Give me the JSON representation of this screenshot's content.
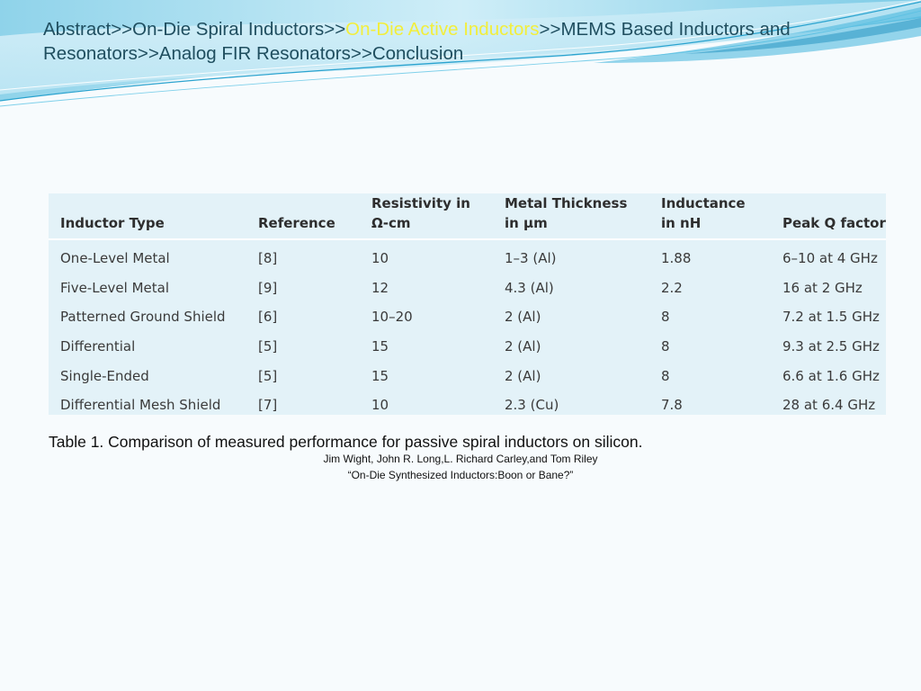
{
  "breadcrumb": {
    "items": [
      {
        "label": "Abstract",
        "active": false
      },
      {
        "label": "On-Die Spiral Inductors",
        "active": false
      },
      {
        "label": "On-Die Active Inductors",
        "active": true
      },
      {
        "label": "MEMS Based Inductors and Resonators",
        "active": false
      },
      {
        "label": "Analog FIR Resonators",
        "active": false
      },
      {
        "label": "Conclusion",
        "active": false
      }
    ],
    "separator": ">>"
  },
  "table": {
    "headers": [
      {
        "line1": "",
        "line2": "Inductor Type"
      },
      {
        "line1": "",
        "line2": "Reference"
      },
      {
        "line1": "Resistivity in",
        "line2": "Ω-cm"
      },
      {
        "line1": "Metal Thickness",
        "line2": "in µm"
      },
      {
        "line1": "Inductance",
        "line2": "in nH"
      },
      {
        "line1": "",
        "line2": "Peak Q factor"
      }
    ],
    "rows": [
      [
        "One-Level Metal",
        "[8]",
        "10",
        "1–3 (Al)",
        "1.88",
        "6–10 at 4 GHz"
      ],
      [
        "Five-Level Metal",
        "[9]",
        "12",
        "4.3 (Al)",
        "2.2",
        "16 at 2 GHz"
      ],
      [
        "Patterned Ground Shield",
        "[6]",
        "10–20",
        "2 (Al)",
        "8",
        "7.2 at 1.5 GHz"
      ],
      [
        "Differential",
        "[5]",
        "15",
        "2 (Al)",
        "8",
        "9.3 at 2.5 GHz"
      ],
      [
        "Single-Ended",
        "[5]",
        "15",
        "2 (Al)",
        "8",
        "6.6 at 1.6 GHz"
      ],
      [
        "Differential Mesh Shield",
        "[7]",
        "10",
        "2.3 (Cu)",
        "7.8",
        "28 at 6.4 GHz"
      ]
    ]
  },
  "caption": "Table 1. Comparison of measured performance for passive spiral inductors on silicon.",
  "authors": "Jim Wight, John R. Long,L. Richard Carley,and Tom Riley",
  "paper_title": "“On-Die Synthesized Inductors:Boon or Bane?”",
  "colors": {
    "text": "#1f4e5f",
    "active": "#f2ee3c",
    "table_bg": "#e3f2f8",
    "wave": "#5bc0de"
  }
}
